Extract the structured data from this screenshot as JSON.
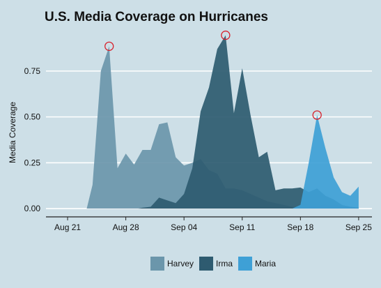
{
  "chart_data": {
    "type": "area",
    "title": "U.S. Media Coverage on Hurricanes",
    "xlabel": "",
    "ylabel": "Media Coverage",
    "x_ticks": [
      {
        "day": 0,
        "label": "Aug 21"
      },
      {
        "day": 7,
        "label": "Aug 28"
      },
      {
        "day": 14,
        "label": "Sep 04"
      },
      {
        "day": 21,
        "label": "Sep 11"
      },
      {
        "day": 28,
        "label": "Sep 18"
      },
      {
        "day": 35,
        "label": "Sep 25"
      }
    ],
    "y_ticks": [
      {
        "value": 0,
        "label": "0.00"
      },
      {
        "value": 0.25,
        "label": "0.25"
      },
      {
        "value": 0.5,
        "label": "0.50"
      },
      {
        "value": 0.75,
        "label": "0.75"
      }
    ],
    "xlim": [
      -2.6,
      36.6
    ],
    "ylim": [
      -0.045,
      0.97
    ],
    "grid": true,
    "legend_position": "bottom",
    "series": [
      {
        "name": "Harvey",
        "color": "#6b96ab",
        "peak_marker": {
          "day": 5,
          "value": 0.885
        },
        "points": [
          [
            2.3,
            0
          ],
          [
            3,
            0.13
          ],
          [
            4,
            0.75
          ],
          [
            5,
            0.885
          ],
          [
            6,
            0.22
          ],
          [
            7,
            0.3
          ],
          [
            8,
            0.24
          ],
          [
            9,
            0.32
          ],
          [
            10,
            0.32
          ],
          [
            11,
            0.46
          ],
          [
            12,
            0.47
          ],
          [
            13,
            0.28
          ],
          [
            14,
            0.235
          ],
          [
            15,
            0.25
          ],
          [
            16,
            0.27
          ],
          [
            17,
            0.21
          ],
          [
            18,
            0.19
          ],
          [
            19,
            0.11
          ],
          [
            20,
            0.11
          ],
          [
            21,
            0.1
          ],
          [
            22,
            0.08
          ],
          [
            23,
            0.06
          ],
          [
            24,
            0.04
          ],
          [
            25,
            0.03
          ],
          [
            26,
            0.02
          ],
          [
            27,
            0.01
          ],
          [
            28,
            0.005
          ],
          [
            29,
            0.01
          ],
          [
            30,
            0.015
          ],
          [
            31,
            0.02
          ],
          [
            32,
            0.02
          ],
          [
            33,
            0.015
          ],
          [
            34,
            0.01
          ],
          [
            35,
            0.005
          ]
        ]
      },
      {
        "name": "Irma",
        "color": "#2e5b70",
        "peak_marker": {
          "day": 19,
          "value": 0.945
        },
        "points": [
          [
            8.5,
            0
          ],
          [
            9,
            0.005
          ],
          [
            10,
            0.01
          ],
          [
            11,
            0.06
          ],
          [
            12,
            0.045
          ],
          [
            13,
            0.03
          ],
          [
            14,
            0.08
          ],
          [
            15,
            0.22
          ],
          [
            16,
            0.53
          ],
          [
            17,
            0.66
          ],
          [
            18,
            0.87
          ],
          [
            19,
            0.945
          ],
          [
            20,
            0.52
          ],
          [
            21,
            0.765
          ],
          [
            22,
            0.51
          ],
          [
            23,
            0.28
          ],
          [
            24,
            0.31
          ],
          [
            25,
            0.1
          ],
          [
            26,
            0.11
          ],
          [
            27,
            0.11
          ],
          [
            28,
            0.115
          ],
          [
            29,
            0.09
          ],
          [
            30,
            0.11
          ],
          [
            31,
            0.07
          ],
          [
            32,
            0.05
          ],
          [
            33,
            0.02
          ],
          [
            34,
            0.01
          ],
          [
            35,
            0.005
          ]
        ]
      },
      {
        "name": "Maria",
        "color": "#3ea0d6",
        "peak_marker": {
          "day": 30,
          "value": 0.51
        },
        "points": [
          [
            27,
            0
          ],
          [
            28,
            0.02
          ],
          [
            29,
            0.25
          ],
          [
            30,
            0.51
          ],
          [
            31,
            0.33
          ],
          [
            32,
            0.17
          ],
          [
            33,
            0.09
          ],
          [
            34,
            0.07
          ],
          [
            35,
            0.12
          ]
        ]
      }
    ]
  }
}
